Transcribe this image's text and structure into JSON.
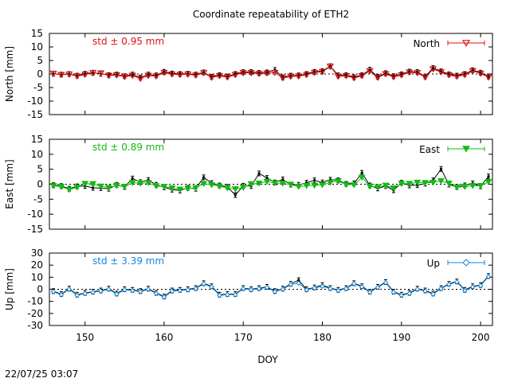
{
  "title": "Coordinate repeatability of ETH2",
  "timestamp": "22/07/25 03:07",
  "chart_data": {
    "type": "line",
    "title": "Coordinate repeatability of ETH2",
    "xlabel": "DOY",
    "xlim": [
      145.5,
      201.5
    ],
    "x_ticks": [
      150,
      160,
      170,
      180,
      190,
      200
    ],
    "grid": false,
    "panels": [
      {
        "ylabel": "North [mm]",
        "ylim": [
          -15,
          15
        ],
        "y_ticks": [
          15,
          10,
          5,
          0,
          -5,
          -10,
          -15
        ],
        "std_label": "std ± 0.95 mm",
        "legend": "North",
        "legend_position": "top-right",
        "color": "#dd1111",
        "marker": "triangle-down-open",
        "series": [
          {
            "name": "North",
            "x": [
              146,
              147,
              148,
              149,
              150,
              151,
              152,
              153,
              154,
              155,
              156,
              157,
              158,
              159,
              160,
              161,
              162,
              163,
              164,
              165,
              166,
              167,
              168,
              169,
              170,
              171,
              172,
              173,
              174,
              175,
              176,
              177,
              178,
              179,
              180,
              181,
              182,
              183,
              184,
              185,
              186,
              187,
              188,
              189,
              190,
              191,
              192,
              193,
              194,
              195,
              196,
              197,
              198,
              199,
              200,
              201
            ],
            "values": [
              0.2,
              -0.3,
              -0.1,
              -0.8,
              -0.2,
              0.4,
              0.3,
              -0.6,
              -0.4,
              -1.0,
              -0.6,
              -1.7,
              -0.6,
              -0.8,
              0.5,
              -0.1,
              -0.3,
              -0.1,
              -0.5,
              0.4,
              -1.3,
              -0.7,
              -1.2,
              -0.3,
              0.4,
              0.4,
              0.1,
              0.3,
              0.5,
              -1.5,
              -0.9,
              -0.8,
              -0.3,
              0.5,
              0.8,
              2.8,
              -0.9,
              -0.7,
              -1.5,
              -0.7,
              1.1,
              -1.3,
              0.0,
              -1.1,
              -0.4,
              0.6,
              0.4,
              -1.2,
              1.8,
              0.7,
              -0.4,
              -0.9,
              -0.3,
              1.1,
              0.2,
              -1.2
            ]
          },
          {
            "name": "",
            "x": [
              146,
              147,
              148,
              149,
              150,
              151,
              152,
              153,
              154,
              155,
              156,
              157,
              158,
              159,
              160,
              161,
              162,
              163,
              164,
              165,
              166,
              167,
              168,
              169,
              170,
              171,
              172,
              173,
              174,
              175,
              176,
              177,
              178,
              179,
              180,
              181,
              182,
              183,
              184,
              185,
              186,
              187,
              188,
              189,
              190,
              191,
              192,
              193,
              194,
              195,
              196,
              197,
              198,
              199,
              200,
              201
            ],
            "values": [
              0.1,
              -0.2,
              0.0,
              -0.6,
              0.1,
              0.5,
              0.1,
              -0.4,
              -0.2,
              -0.8,
              -0.2,
              -1.3,
              -0.2,
              -0.5,
              0.8,
              0.2,
              0.0,
              0.1,
              -0.2,
              0.6,
              -1.0,
              -0.4,
              -0.9,
              0.0,
              0.7,
              0.7,
              0.4,
              0.6,
              1.5,
              -1.2,
              -0.6,
              -0.5,
              0.0,
              0.8,
              1.1,
              2.9,
              -0.5,
              -0.4,
              -1.2,
              -0.4,
              1.6,
              -1.0,
              0.3,
              -0.8,
              -0.1,
              0.9,
              0.7,
              -0.9,
              2.2,
              1.0,
              -0.1,
              -0.6,
              0.0,
              1.4,
              0.5,
              -0.9
            ]
          }
        ]
      },
      {
        "ylabel": "East [mm]",
        "ylim": [
          -15,
          15
        ],
        "y_ticks": [
          15,
          10,
          5,
          0,
          -5,
          -10,
          -15
        ],
        "std_label": "std ± 0.89 mm",
        "legend": "East",
        "legend_position": "top-right",
        "color": "#11bb11",
        "marker": "triangle-down-filled",
        "series": [
          {
            "name": "East",
            "x": [
              146,
              147,
              148,
              149,
              150,
              151,
              152,
              153,
              154,
              155,
              156,
              157,
              158,
              159,
              160,
              161,
              162,
              163,
              164,
              165,
              166,
              167,
              168,
              169,
              170,
              171,
              172,
              173,
              174,
              175,
              176,
              177,
              178,
              179,
              180,
              181,
              182,
              183,
              184,
              185,
              186,
              187,
              188,
              189,
              190,
              191,
              192,
              193,
              194,
              195,
              196,
              197,
              198,
              199,
              200,
              201
            ],
            "values": [
              -0.5,
              -0.8,
              -1.8,
              -1.0,
              0.2,
              0.1,
              -0.7,
              -1.1,
              -0.4,
              -0.8,
              0.5,
              0.3,
              0.5,
              -0.6,
              -0.8,
              -1.3,
              -1.7,
              -1.4,
              -1.2,
              0.2,
              -0.2,
              -0.7,
              -1.2,
              -1.6,
              -1.1,
              0.1,
              0.3,
              0.9,
              0.4,
              0.3,
              -0.1,
              -0.8,
              -0.5,
              -0.4,
              -0.2,
              0.6,
              1.1,
              -0.1,
              -0.2,
              2.3,
              -0.7,
              -0.9,
              -0.4,
              -1.3,
              0.2,
              0.2,
              0.6,
              0.5,
              0.6,
              1.1,
              0.3,
              -1.0,
              -0.8,
              -0.5,
              -0.5,
              0.8
            ]
          },
          {
            "name": "",
            "x": [
              146,
              147,
              148,
              149,
              150,
              151,
              152,
              153,
              154,
              155,
              156,
              157,
              158,
              159,
              160,
              161,
              162,
              163,
              164,
              165,
              166,
              167,
              168,
              169,
              170,
              171,
              172,
              173,
              174,
              175,
              176,
              177,
              178,
              179,
              180,
              181,
              182,
              183,
              184,
              185,
              186,
              187,
              188,
              189,
              190,
              191,
              192,
              193,
              194,
              195,
              196,
              197,
              198,
              199,
              200,
              201
            ],
            "values": [
              -0.3,
              -0.6,
              -1.5,
              -0.7,
              -0.6,
              -1.2,
              -1.3,
              -1.5,
              -0.2,
              -0.9,
              1.9,
              0.7,
              1.4,
              -0.2,
              -1.0,
              -1.8,
              -2.1,
              -1.2,
              -1.5,
              2.3,
              0.4,
              -0.4,
              -0.9,
              -3.6,
              -0.5,
              -0.6,
              3.6,
              2.1,
              0.6,
              1.6,
              -0.1,
              -0.2,
              0.5,
              1.3,
              0.6,
              1.5,
              1.3,
              0.1,
              0.3,
              3.8,
              -0.4,
              -1.4,
              -0.6,
              -2.0,
              0.5,
              -0.4,
              -0.3,
              0.2,
              1.3,
              5.1,
              -0.1,
              -0.9,
              -0.4,
              0.3,
              -0.7,
              2.6
            ]
          }
        ]
      },
      {
        "ylabel": "Up [mm]",
        "ylim": [
          -30,
          30
        ],
        "y_ticks": [
          30,
          20,
          10,
          0,
          -10,
          -20,
          -30
        ],
        "std_label": "std ± 3.39 mm",
        "legend": "Up",
        "legend_position": "top-right",
        "color": "#1188dd",
        "marker": "diamond-open",
        "series": [
          {
            "name": "Up",
            "x": [
              146,
              147,
              148,
              149,
              150,
              151,
              152,
              153,
              154,
              155,
              156,
              157,
              158,
              159,
              160,
              161,
              162,
              163,
              164,
              165,
              166,
              167,
              168,
              169,
              170,
              171,
              172,
              173,
              174,
              175,
              176,
              177,
              178,
              179,
              180,
              181,
              182,
              183,
              184,
              185,
              186,
              187,
              188,
              189,
              190,
              191,
              192,
              193,
              194,
              195,
              196,
              197,
              198,
              199,
              200,
              201
            ],
            "values": [
              -2.0,
              -4.5,
              0.0,
              -5.0,
              -3.5,
              -2.5,
              -1.5,
              0.0,
              -4.0,
              -0.5,
              -1.0,
              -2.0,
              0.0,
              -3.5,
              -6.5,
              -1.5,
              -1.0,
              -0.5,
              0.5,
              4.5,
              2.0,
              -5.0,
              -4.5,
              -4.5,
              0.5,
              -0.5,
              0.5,
              1.5,
              -2.0,
              0.0,
              4.0,
              5.0,
              -0.5,
              1.0,
              2.5,
              0.5,
              -1.0,
              0.5,
              4.5,
              2.0,
              -2.5,
              1.5,
              5.5,
              -2.5,
              -5.0,
              -3.5,
              0.0,
              -1.5,
              -4.0,
              0.5,
              4.0,
              6.0,
              -1.0,
              2.0,
              3.0,
              10.5
            ]
          },
          {
            "name": "",
            "x": [
              146,
              147,
              148,
              149,
              150,
              151,
              152,
              153,
              154,
              155,
              156,
              157,
              158,
              159,
              160,
              161,
              162,
              163,
              164,
              165,
              166,
              167,
              168,
              169,
              170,
              171,
              172,
              173,
              174,
              175,
              176,
              177,
              178,
              179,
              180,
              181,
              182,
              183,
              184,
              185,
              186,
              187,
              188,
              189,
              190,
              191,
              192,
              193,
              194,
              195,
              196,
              197,
              198,
              199,
              200,
              201
            ],
            "values": [
              -1.5,
              -4.0,
              0.5,
              -4.5,
              -3.0,
              -2.0,
              -1.0,
              0.5,
              -3.5,
              0.0,
              -0.5,
              -1.5,
              0.5,
              -3.0,
              -6.0,
              -1.0,
              -0.5,
              0.0,
              1.0,
              5.0,
              2.5,
              -4.5,
              -4.0,
              -4.0,
              1.0,
              0.0,
              1.0,
              2.0,
              -1.5,
              0.5,
              4.5,
              7.5,
              0.0,
              1.5,
              3.5,
              1.0,
              -0.5,
              1.0,
              5.0,
              2.5,
              -2.0,
              2.0,
              6.0,
              -2.0,
              -4.5,
              -3.0,
              0.5,
              -1.0,
              -3.5,
              1.0,
              4.5,
              6.5,
              -0.5,
              2.5,
              3.5,
              11.0
            ]
          }
        ]
      }
    ]
  }
}
